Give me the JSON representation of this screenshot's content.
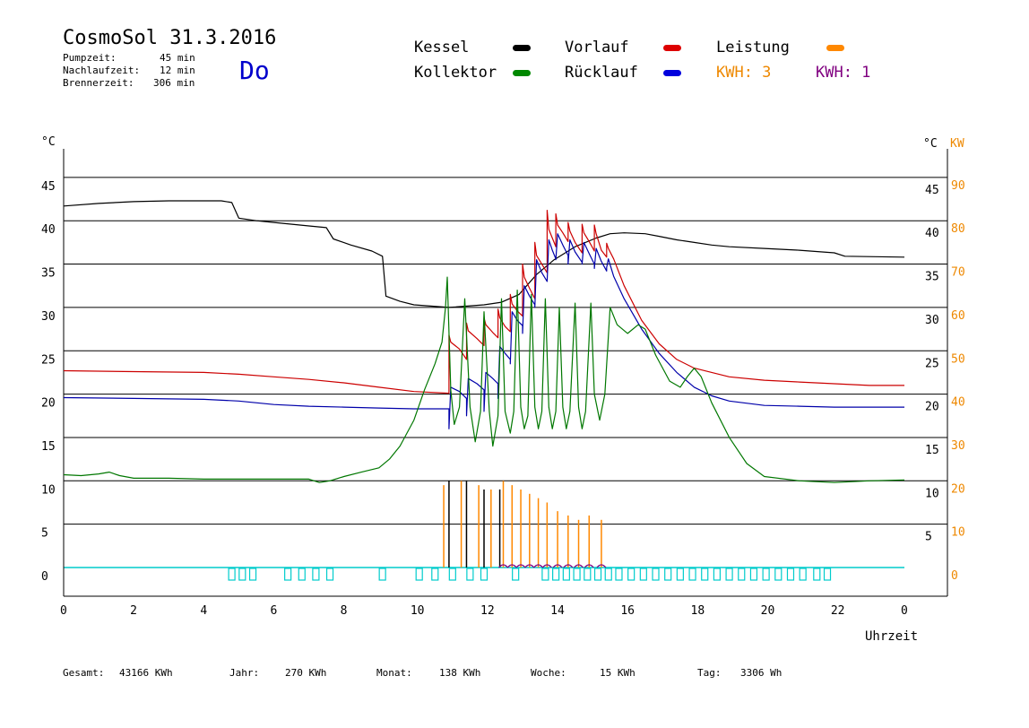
{
  "header": {
    "title": "CosmoSol 31.3.2016",
    "pump_label": "Pumpzeit:",
    "pump_value": "45 min",
    "overrun_label": "Nachlaufzeit:",
    "overrun_value": "12 min",
    "burner_label": "Brennerzeit:",
    "burner_value": "306 min",
    "weekday": "Do"
  },
  "legend": {
    "kessel": "Kessel",
    "vorlauf": "Vorlauf",
    "leistung": "Leistung",
    "kollektor": "Kollektor",
    "ruecklauf": "Rücklauf",
    "kwh1": "KWH: 3",
    "kwh2": "KWH: 1"
  },
  "colors": {
    "kessel": "#000000",
    "vorlauf": "#cc0000",
    "leistung": "#ff8800",
    "kollektor": "#007700",
    "ruecklauf": "#0000aa",
    "kwh2": "#800080",
    "pump": "#00cccc",
    "left_axis": "#000000",
    "right_axis": "#ee8800"
  },
  "footer": {
    "gesamt_label": "Gesamt:",
    "gesamt_value": "43166 KWh",
    "jahr_label": "Jahr:",
    "jahr_value": "270 KWh",
    "monat_label": "Monat:",
    "monat_value": "138 KWh",
    "woche_label": "Woche:",
    "woche_value": "15 KWh",
    "tag_label": "Tag:",
    "tag_value": "3306 Wh"
  },
  "chart_data": {
    "type": "line",
    "xlabel": "Uhrzeit",
    "ylabel_left": "°C",
    "ylabel_right_temp": "°C",
    "ylabel_right_power": "KW",
    "x_ticks": [
      "0",
      "2",
      "4",
      "6",
      "8",
      "10",
      "12",
      "14",
      "16",
      "18",
      "20",
      "22",
      "0"
    ],
    "y_left_ticks": [
      "0",
      "5",
      "10",
      "15",
      "20",
      "25",
      "30",
      "35",
      "40",
      "45"
    ],
    "y_right_temp_ticks": [
      "5",
      "10",
      "15",
      "20",
      "25",
      "30",
      "35",
      "40",
      "45"
    ],
    "y_right_kw_ticks": [
      "0",
      "10",
      "20",
      "30",
      "40",
      "50",
      "60",
      "70",
      "80",
      "90"
    ],
    "xlim": [
      0,
      24
    ],
    "ylim": [
      -3,
      48
    ],
    "grid": true,
    "series": [
      {
        "name": "Kessel",
        "key": "kessel",
        "color": "#000000",
        "values": [
          [
            0,
            41.7
          ],
          [
            1,
            42.0
          ],
          [
            2,
            42.2
          ],
          [
            3,
            42.3
          ],
          [
            4.5,
            42.3
          ],
          [
            4.8,
            42.1
          ],
          [
            5.0,
            40.3
          ],
          [
            5.5,
            40.0
          ],
          [
            6,
            39.8
          ],
          [
            7,
            39.4
          ],
          [
            7.5,
            39.2
          ],
          [
            7.7,
            37.9
          ],
          [
            8.2,
            37.2
          ],
          [
            8.8,
            36.5
          ],
          [
            9.1,
            35.9
          ],
          [
            9.2,
            31.3
          ],
          [
            9.6,
            30.7
          ],
          [
            10,
            30.3
          ],
          [
            11,
            30.0
          ],
          [
            12,
            30.3
          ],
          [
            12.5,
            30.6
          ],
          [
            13,
            31.5
          ],
          [
            13.5,
            33.8
          ],
          [
            14,
            35.5
          ],
          [
            14.6,
            37.0
          ],
          [
            15.2,
            38.0
          ],
          [
            15.6,
            38.5
          ],
          [
            16,
            38.6
          ],
          [
            16.6,
            38.5
          ],
          [
            17,
            38.2
          ],
          [
            17.5,
            37.8
          ],
          [
            18,
            37.5
          ],
          [
            18.5,
            37.2
          ],
          [
            19,
            37.0
          ],
          [
            20,
            36.8
          ],
          [
            21,
            36.6
          ],
          [
            22,
            36.3
          ],
          [
            22.3,
            35.9
          ],
          [
            24,
            35.8
          ]
        ]
      },
      {
        "name": "Vorlauf",
        "key": "vorlauf",
        "color": "#cc0000",
        "values": [
          [
            0,
            22.7
          ],
          [
            2,
            22.6
          ],
          [
            4,
            22.5
          ],
          [
            5,
            22.3
          ],
          [
            6,
            22.0
          ],
          [
            7,
            21.7
          ],
          [
            8,
            21.3
          ],
          [
            9,
            20.8
          ],
          [
            10,
            20.3
          ],
          [
            11,
            20.1
          ],
          [
            11.0,
            26.8
          ],
          [
            11.05,
            26.0
          ],
          [
            11.3,
            25.2
          ],
          [
            11.5,
            24.0
          ],
          [
            11.5,
            28.2
          ],
          [
            11.55,
            27.3
          ],
          [
            11.8,
            26.4
          ],
          [
            12.0,
            25.6
          ],
          [
            12.0,
            28.8
          ],
          [
            12.05,
            28.0
          ],
          [
            12.25,
            27.1
          ],
          [
            12.4,
            26.5
          ],
          [
            12.4,
            29.8
          ],
          [
            12.45,
            28.8
          ],
          [
            12.6,
            27.8
          ],
          [
            12.75,
            27.2
          ],
          [
            12.75,
            31.5
          ],
          [
            12.8,
            30.4
          ],
          [
            12.95,
            29.6
          ],
          [
            13.1,
            29.0
          ],
          [
            13.1,
            35.0
          ],
          [
            13.15,
            33.5
          ],
          [
            13.3,
            32.2
          ],
          [
            13.45,
            31.0
          ],
          [
            13.45,
            37.5
          ],
          [
            13.5,
            36.0
          ],
          [
            13.65,
            35.0
          ],
          [
            13.8,
            34.0
          ],
          [
            13.8,
            41.2
          ],
          [
            13.85,
            39.0
          ],
          [
            13.95,
            38.0
          ],
          [
            14.05,
            37.0
          ],
          [
            14.05,
            40.8
          ],
          [
            14.1,
            39.5
          ],
          [
            14.25,
            38.6
          ],
          [
            14.4,
            37.6
          ],
          [
            14.4,
            39.8
          ],
          [
            14.45,
            38.8
          ],
          [
            14.6,
            37.5
          ],
          [
            14.8,
            36.3
          ],
          [
            14.8,
            39.6
          ],
          [
            14.85,
            38.6
          ],
          [
            15.0,
            37.6
          ],
          [
            15.15,
            36.5
          ],
          [
            15.15,
            39.5
          ],
          [
            15.2,
            38.5
          ],
          [
            15.35,
            36.6
          ],
          [
            15.5,
            35.8
          ],
          [
            15.5,
            37.4
          ],
          [
            15.55,
            36.8
          ],
          [
            15.7,
            35.6
          ],
          [
            16.0,
            32.5
          ],
          [
            16.5,
            28.5
          ],
          [
            17,
            25.8
          ],
          [
            17.5,
            24.0
          ],
          [
            18,
            23.0
          ],
          [
            18.5,
            22.5
          ],
          [
            19,
            22.0
          ],
          [
            20,
            21.6
          ],
          [
            21,
            21.4
          ],
          [
            22,
            21.2
          ],
          [
            23,
            21.0
          ],
          [
            24,
            21.0
          ]
        ]
      },
      {
        "name": "Rücklauf",
        "key": "ruecklauf",
        "color": "#0000aa",
        "values": [
          [
            0,
            19.6
          ],
          [
            2,
            19.5
          ],
          [
            4,
            19.4
          ],
          [
            5,
            19.2
          ],
          [
            6,
            18.8
          ],
          [
            7,
            18.6
          ],
          [
            8,
            18.5
          ],
          [
            9,
            18.4
          ],
          [
            10,
            18.3
          ],
          [
            11,
            18.3
          ],
          [
            11.0,
            16.0
          ],
          [
            11.05,
            20.8
          ],
          [
            11.3,
            20.3
          ],
          [
            11.5,
            19.5
          ],
          [
            11.5,
            17.5
          ],
          [
            11.55,
            21.8
          ],
          [
            11.8,
            21.2
          ],
          [
            12.0,
            20.5
          ],
          [
            12.0,
            18.0
          ],
          [
            12.05,
            22.5
          ],
          [
            12.25,
            21.8
          ],
          [
            12.4,
            21.2
          ],
          [
            12.4,
            19.5
          ],
          [
            12.45,
            25.5
          ],
          [
            12.6,
            24.7
          ],
          [
            12.75,
            24.0
          ],
          [
            12.75,
            23.5
          ],
          [
            12.8,
            29.5
          ],
          [
            12.95,
            28.5
          ],
          [
            13.1,
            27.9
          ],
          [
            13.1,
            27.0
          ],
          [
            13.15,
            32.5
          ],
          [
            13.3,
            31.3
          ],
          [
            13.45,
            30.3
          ],
          [
            13.45,
            30.0
          ],
          [
            13.5,
            35.5
          ],
          [
            13.65,
            34.0
          ],
          [
            13.8,
            33.0
          ],
          [
            13.8,
            33.0
          ],
          [
            13.85,
            37.8
          ],
          [
            13.95,
            36.6
          ],
          [
            14.05,
            35.6
          ],
          [
            14.05,
            35.5
          ],
          [
            14.1,
            38.5
          ],
          [
            14.25,
            37.2
          ],
          [
            14.4,
            36.0
          ],
          [
            14.4,
            35.0
          ],
          [
            14.45,
            37.8
          ],
          [
            14.6,
            36.4
          ],
          [
            14.8,
            35.2
          ],
          [
            14.8,
            35.0
          ],
          [
            14.85,
            37.5
          ],
          [
            15.0,
            36.2
          ],
          [
            15.15,
            35.0
          ],
          [
            15.15,
            34.5
          ],
          [
            15.2,
            36.8
          ],
          [
            15.35,
            35.3
          ],
          [
            15.5,
            34.2
          ],
          [
            15.5,
            34.6
          ],
          [
            15.55,
            35.6
          ],
          [
            15.7,
            33.6
          ],
          [
            16.0,
            31.0
          ],
          [
            16.5,
            27.5
          ],
          [
            17,
            24.7
          ],
          [
            17.5,
            22.5
          ],
          [
            18,
            20.8
          ],
          [
            18.5,
            19.8
          ],
          [
            19,
            19.2
          ],
          [
            20,
            18.7
          ],
          [
            21,
            18.6
          ],
          [
            22,
            18.5
          ],
          [
            23,
            18.5
          ],
          [
            24,
            18.5
          ]
        ]
      },
      {
        "name": "Kollektor",
        "key": "kollektor",
        "color": "#007700",
        "values": [
          [
            0,
            10.7
          ],
          [
            0.5,
            10.6
          ],
          [
            1,
            10.8
          ],
          [
            1.3,
            11.0
          ],
          [
            1.6,
            10.6
          ],
          [
            2,
            10.3
          ],
          [
            3,
            10.3
          ],
          [
            4,
            10.2
          ],
          [
            5,
            10.2
          ],
          [
            6,
            10.2
          ],
          [
            7,
            10.2
          ],
          [
            7.3,
            9.8
          ],
          [
            7.6,
            10.0
          ],
          [
            8,
            10.5
          ],
          [
            8.5,
            11.0
          ],
          [
            9,
            11.5
          ],
          [
            9.3,
            12.5
          ],
          [
            9.6,
            14.0
          ],
          [
            10,
            17.0
          ],
          [
            10.3,
            20.5
          ],
          [
            10.6,
            23.5
          ],
          [
            10.8,
            26.0
          ],
          [
            10.9,
            30.0
          ],
          [
            10.95,
            33.5
          ],
          [
            11.05,
            20.5
          ],
          [
            11.15,
            16.5
          ],
          [
            11.3,
            18.5
          ],
          [
            11.45,
            31.0
          ],
          [
            11.6,
            18.5
          ],
          [
            11.75,
            14.5
          ],
          [
            11.9,
            18.0
          ],
          [
            12.0,
            29.5
          ],
          [
            12.15,
            18.0
          ],
          [
            12.25,
            14.0
          ],
          [
            12.4,
            17.5
          ],
          [
            12.5,
            31.0
          ],
          [
            12.6,
            18.0
          ],
          [
            12.75,
            15.5
          ],
          [
            12.85,
            18.0
          ],
          [
            12.95,
            32.0
          ],
          [
            13.05,
            18.5
          ],
          [
            13.15,
            16.0
          ],
          [
            13.25,
            17.5
          ],
          [
            13.35,
            31.5
          ],
          [
            13.45,
            18.5
          ],
          [
            13.55,
            16.0
          ],
          [
            13.65,
            18.0
          ],
          [
            13.75,
            31.0
          ],
          [
            13.85,
            18.5
          ],
          [
            13.95,
            16.0
          ],
          [
            14.05,
            18.0
          ],
          [
            14.15,
            30.0
          ],
          [
            14.25,
            18.5
          ],
          [
            14.35,
            16.0
          ],
          [
            14.45,
            18.0
          ],
          [
            14.6,
            30.5
          ],
          [
            14.7,
            18.5
          ],
          [
            14.8,
            16.0
          ],
          [
            14.9,
            18.0
          ],
          [
            15.05,
            30.5
          ],
          [
            15.15,
            20.0
          ],
          [
            15.3,
            17.0
          ],
          [
            15.45,
            20.0
          ],
          [
            15.6,
            30.0
          ],
          [
            15.8,
            28.0
          ],
          [
            16.1,
            27.0
          ],
          [
            16.4,
            28.0
          ],
          [
            16.6,
            27.5
          ],
          [
            16.9,
            24.5
          ],
          [
            17.3,
            21.5
          ],
          [
            17.6,
            20.8
          ],
          [
            17.8,
            22.0
          ],
          [
            18.0,
            23.0
          ],
          [
            18.2,
            22.0
          ],
          [
            18.5,
            19.0
          ],
          [
            19,
            15.0
          ],
          [
            19.5,
            12.0
          ],
          [
            20,
            10.5
          ],
          [
            21,
            10.0
          ],
          [
            22,
            9.8
          ],
          [
            23,
            10.0
          ],
          [
            24,
            10.1
          ]
        ]
      }
    ],
    "power_kw": {
      "name": "Leistung",
      "unit": "KW",
      "color": "#ff8800",
      "times": [
        10.85,
        11.35,
        11.85,
        12.2,
        12.55,
        12.8,
        13.05,
        13.3,
        13.55,
        13.8,
        14.1,
        14.4,
        14.7,
        15.0,
        15.35
      ],
      "values": [
        9.5,
        10.0,
        9.5,
        9.0,
        10.0,
        9.5,
        9.0,
        8.5,
        8.0,
        7.5,
        6.5,
        6.0,
        5.5,
        6.0,
        5.5
      ]
    },
    "kessel_spikes": {
      "times": [
        11.0,
        11.5,
        12.0,
        12.45
      ],
      "values": [
        10.0,
        10.0,
        9.0,
        9.0
      ]
    },
    "pump_ticks": [
      4.8,
      5.1,
      5.4,
      6.4,
      6.8,
      7.2,
      7.6,
      9.1,
      10.15,
      10.6,
      11.1,
      11.6,
      12.0,
      12.9,
      13.75,
      14.05,
      14.35,
      14.65,
      14.95,
      15.25,
      15.55,
      15.85,
      16.2,
      16.55,
      16.9,
      17.25,
      17.6,
      17.95,
      18.3,
      18.65,
      19.0,
      19.35,
      19.7,
      20.05,
      20.4,
      20.75,
      21.1,
      21.5,
      21.8
    ]
  }
}
